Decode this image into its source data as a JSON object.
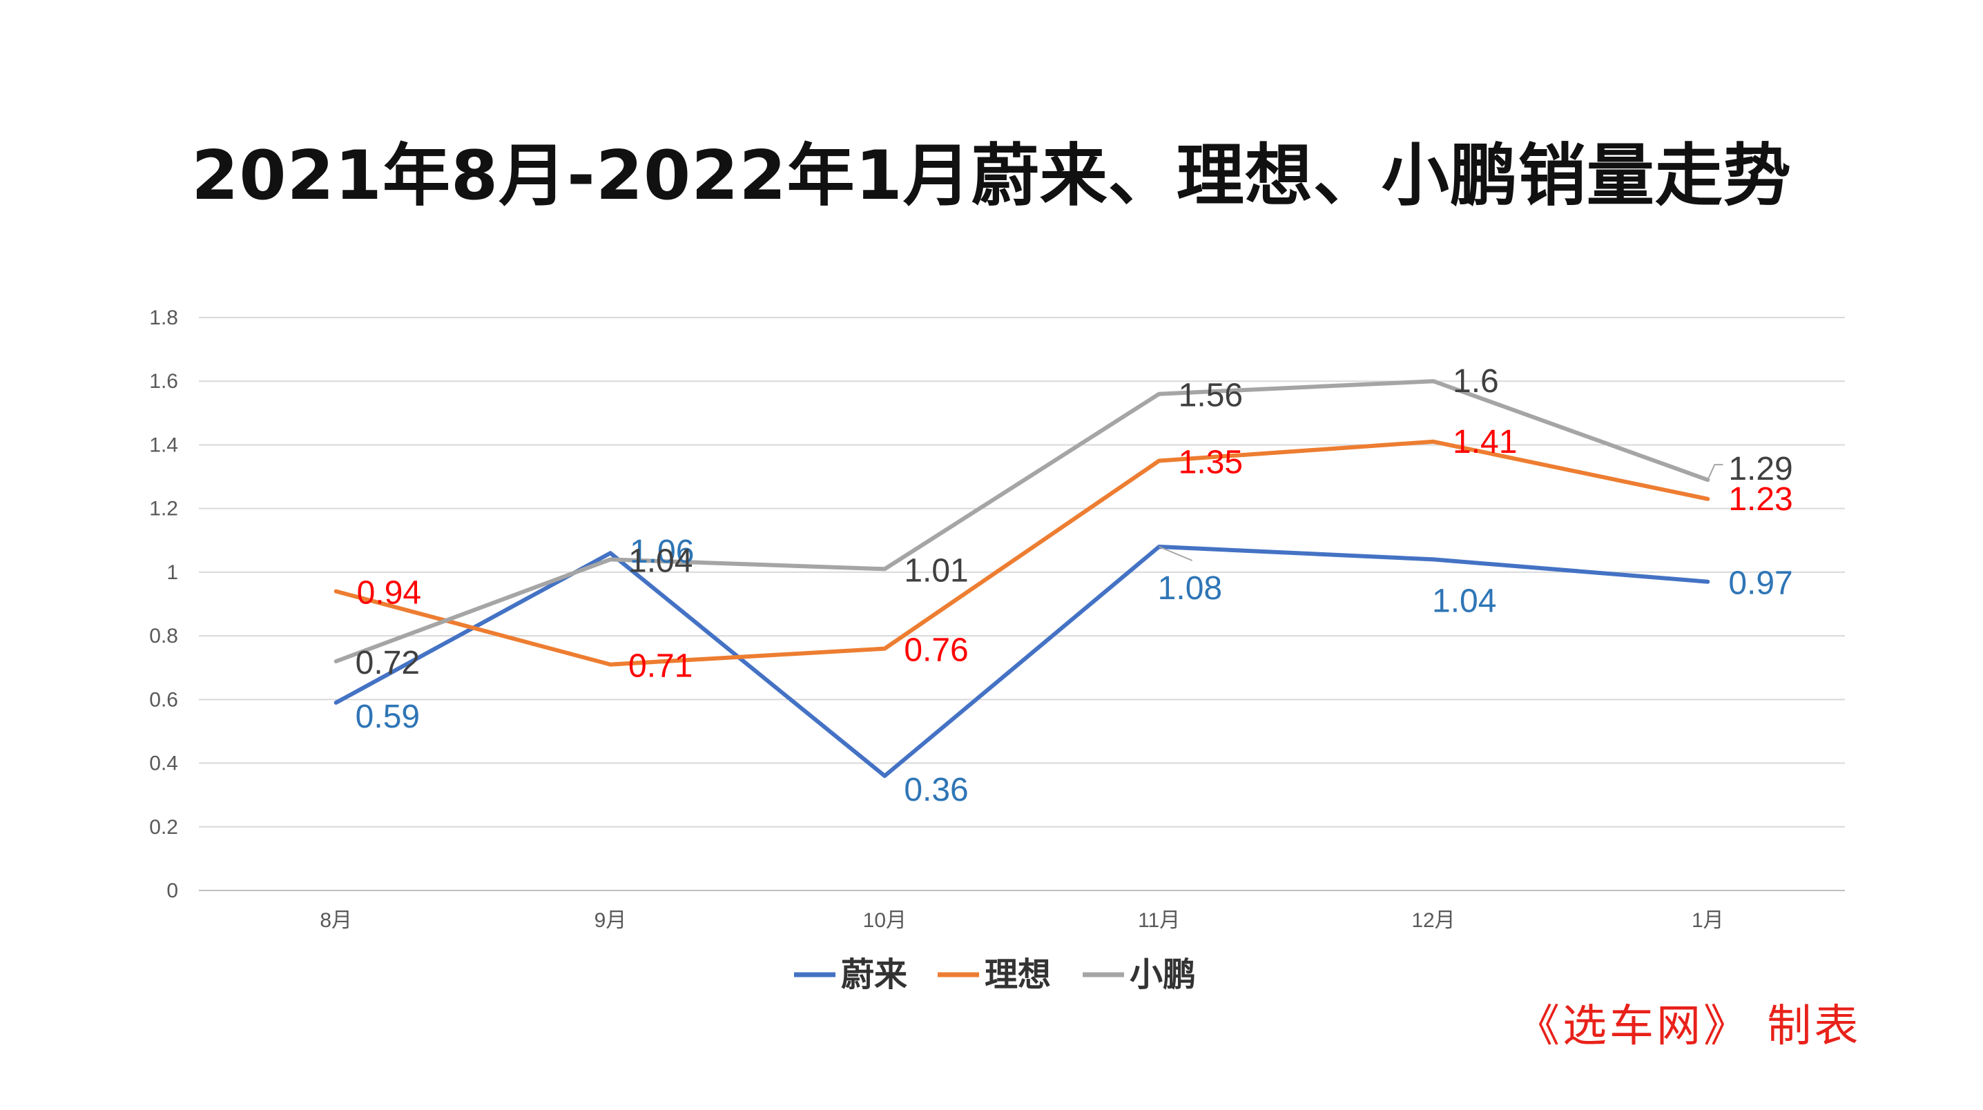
{
  "title": "2021年8月-2022年1月蔚来、理想、小鹏销量走势",
  "credit": "《选车网》 制表",
  "chart_data": {
    "type": "line",
    "title": "2021年8月-2022年1月蔚来、理想、小鹏销量走势",
    "categories": [
      "8月",
      "9月",
      "10月",
      "11月",
      "12月",
      "1月"
    ],
    "ylim": [
      0,
      1.8
    ],
    "yticks": [
      0,
      0.2,
      0.4,
      0.6,
      0.8,
      1,
      1.2,
      1.4,
      1.6,
      1.8
    ],
    "ytick_labels": [
      "0",
      "0.2",
      "0.4",
      "0.6",
      "0.8",
      "1",
      "1.2",
      "1.4",
      "1.6",
      "1.8"
    ],
    "grid": true,
    "legend": "bottom",
    "series": [
      {
        "name": "蔚来",
        "color": "#4472c4",
        "label_color": "#2e75b6",
        "values": [
          0.59,
          1.06,
          0.36,
          1.08,
          1.04,
          0.97
        ],
        "labels": [
          "0.59",
          "1.06",
          "0.36",
          "1.08",
          "1.04",
          "0.97"
        ]
      },
      {
        "name": "理想",
        "color": "#ed7d31",
        "label_color": "#ff0000",
        "values": [
          0.94,
          0.71,
          0.76,
          1.35,
          1.41,
          1.23
        ],
        "labels": [
          "0.94",
          "0.71",
          "0.76",
          "1.35",
          "1.41",
          "1.23"
        ]
      },
      {
        "name": "小鹏",
        "color": "#a5a5a5",
        "label_color": "#404040",
        "values": [
          0.72,
          1.04,
          1.01,
          1.56,
          1.6,
          1.29
        ],
        "labels": [
          "0.72",
          "1.04",
          "1.01",
          "1.56",
          "1.6",
          "1.29"
        ]
      }
    ]
  }
}
